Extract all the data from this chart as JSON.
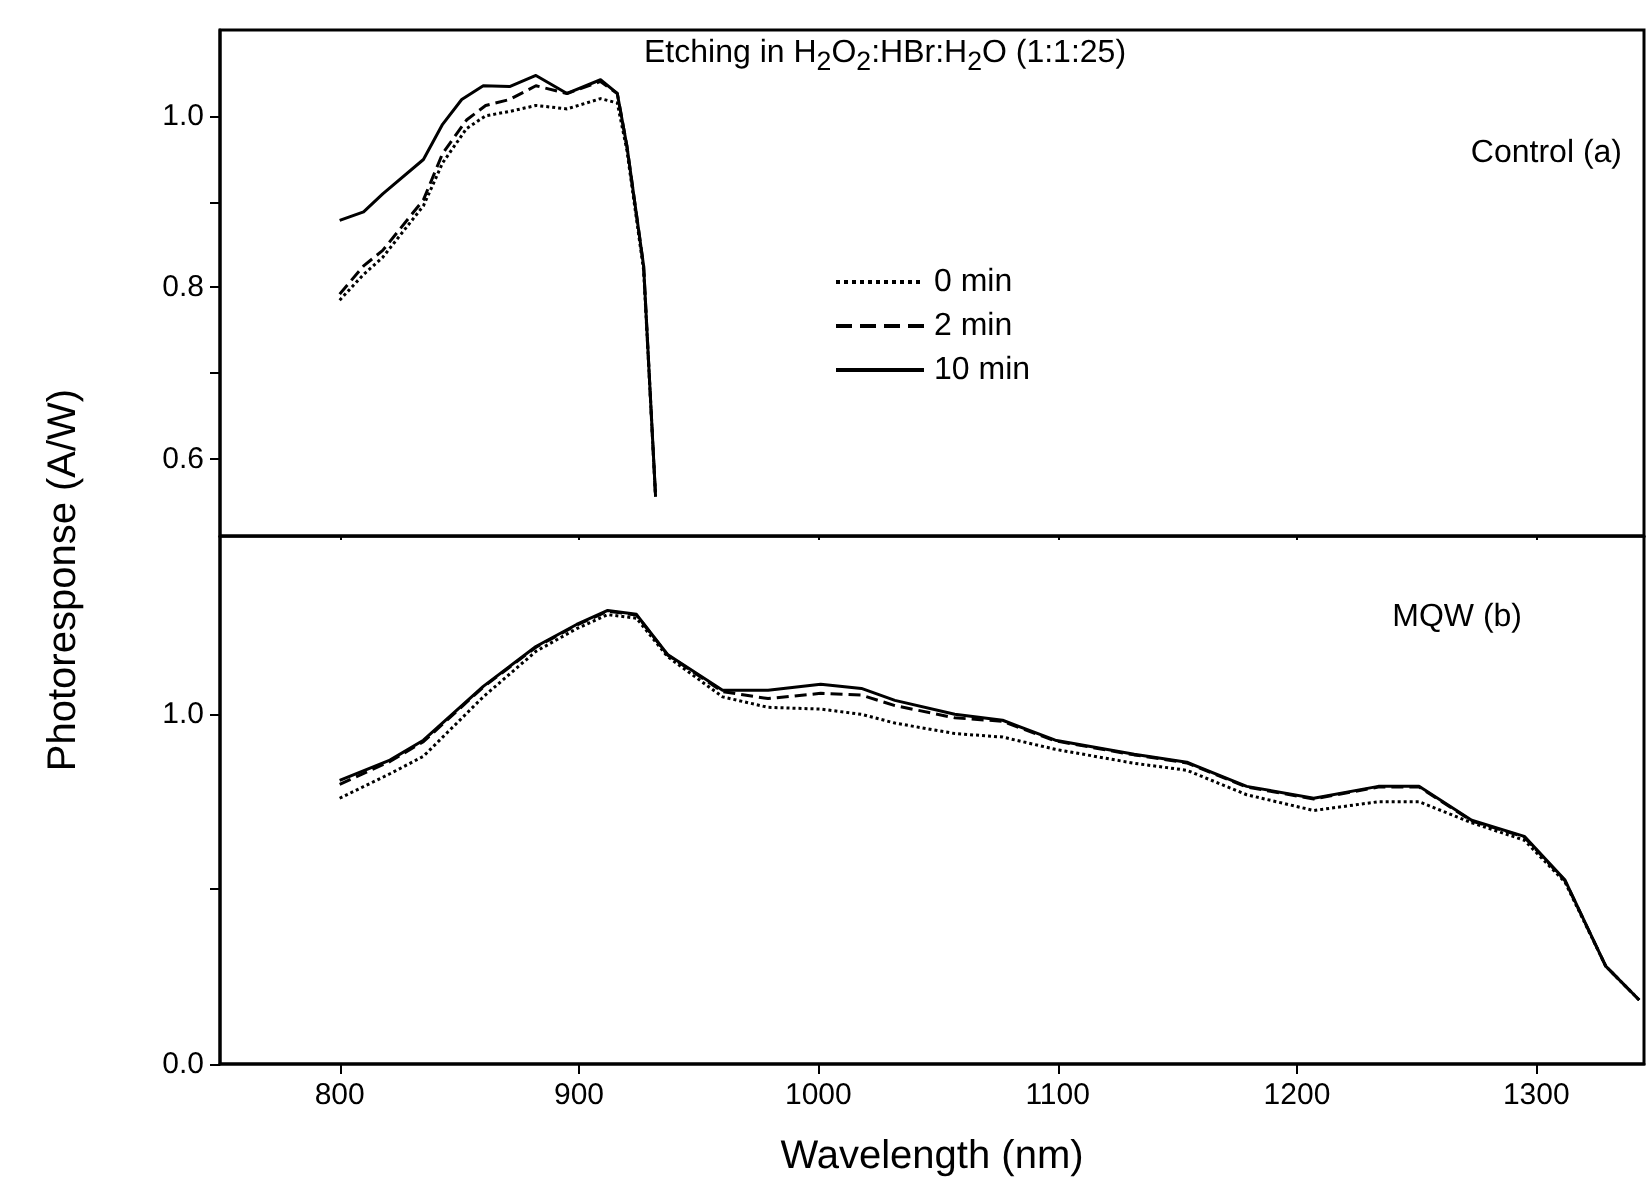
{
  "chart_data": [
    {
      "type": "line",
      "ylabel": "Photoresponse (A/W)",
      "annotations": [
        "Etching in H$_{2}$O$_{2}$:HBr:H$_{2}$O (1:1:25)",
        "Control (a)"
      ],
      "xlim": [
        750,
        1345
      ],
      "xticks": [
        800,
        900,
        1000,
        1100,
        1200,
        1300
      ],
      "ylim": [
        0.51,
        1.1
      ],
      "yticks": [
        0.6,
        {
          "value": 0.7,
          "label": null
        },
        0.8,
        {
          "value": 0.9,
          "label": null
        },
        {
          "value": 1,
          "label": "1.0"
        }
      ],
      "tick_labels": "y",
      "grid": false,
      "legend": "right",
      "marker": "none",
      "series": [
        {
          "name": "0 min",
          "color": "#000000",
          "line_style": "dotted",
          "x": [
            800,
            810,
            818,
            835,
            843,
            853,
            861,
            871,
            882,
            895,
            909,
            916,
            920,
            927,
            932
          ],
          "values": [
            0.785,
            0.815,
            0.835,
            0.895,
            0.945,
            0.985,
            1.0,
            1.005,
            1.012,
            1.008,
            1.02,
            1.015,
            0.96,
            0.82,
            0.556
          ]
        },
        {
          "name": "2 min",
          "color": "#000000",
          "line_style": "dashed",
          "x": [
            800,
            810,
            818,
            835,
            843,
            853,
            861,
            871,
            882,
            895,
            909,
            916,
            920,
            927,
            932
          ],
          "values": [
            0.792,
            0.825,
            0.843,
            0.902,
            0.956,
            0.995,
            1.012,
            1.019,
            1.035,
            1.026,
            1.04,
            1.026,
            0.965,
            0.825,
            0.556
          ]
        },
        {
          "name": "10 min",
          "color": "#000000",
          "line_style": "solid",
          "x": [
            800,
            810,
            818,
            835,
            843,
            851,
            860,
            871,
            882,
            895,
            909,
            916,
            920,
            927,
            932
          ],
          "values": [
            0.878,
            0.888,
            0.909,
            0.949,
            0.99,
            1.019,
            1.035,
            1.034,
            1.047,
            1.026,
            1.042,
            1.026,
            0.965,
            0.825,
            0.556
          ]
        }
      ]
    },
    {
      "type": "line",
      "xlabel": "Wavelength (nm)",
      "annotations": [
        "MQW (b)"
      ],
      "xlim": [
        750,
        1345
      ],
      "xticks": [
        800,
        900,
        1000,
        1100,
        1200,
        1300
      ],
      "ylim": [
        0,
        1.51
      ],
      "yticks": [
        {
          "value": 0,
          "label": "0.0"
        },
        {
          "value": 0.5,
          "label": null
        },
        {
          "value": 1,
          "label": "1.0"
        }
      ],
      "grid": false,
      "legend": false,
      "marker": "none",
      "series": [
        {
          "color": "#000000",
          "line_style": "dotted",
          "x": [
            800,
            821,
            835,
            860,
            882,
            899,
            912,
            924,
            937,
            960,
            979,
            1001,
            1018,
            1032,
            1057,
            1077,
            1099,
            1132,
            1154,
            1179,
            1207,
            1234,
            1251,
            1273,
            1295,
            1312,
            1329,
            1343
          ],
          "values": [
            0.76,
            0.83,
            0.88,
            1.05,
            1.18,
            1.245,
            1.285,
            1.275,
            1.165,
            1.05,
            1.02,
            1.015,
            1.0,
            0.975,
            0.945,
            0.935,
            0.9,
            0.86,
            0.84,
            0.77,
            0.725,
            0.75,
            0.75,
            0.69,
            0.64,
            0.52,
            0.28,
            0.183
          ]
        },
        {
          "color": "#000000",
          "line_style": "dashed",
          "x": [
            800,
            821,
            835,
            860,
            882,
            899,
            912,
            924,
            937,
            960,
            979,
            1001,
            1018,
            1032,
            1057,
            1077,
            1099,
            1132,
            1154,
            1179,
            1207,
            1234,
            1251,
            1273,
            1295,
            1312,
            1329,
            1343
          ],
          "values": [
            0.8,
            0.865,
            0.922,
            1.078,
            1.192,
            1.255,
            1.295,
            1.284,
            1.17,
            1.065,
            1.045,
            1.06,
            1.055,
            1.025,
            0.99,
            0.98,
            0.924,
            0.884,
            0.861,
            0.792,
            0.758,
            0.792,
            0.792,
            0.695,
            0.649,
            0.524,
            0.28,
            0.183
          ]
        },
        {
          "color": "#000000",
          "line_style": "solid",
          "x": [
            800,
            821,
            835,
            860,
            882,
            899,
            912,
            924,
            937,
            960,
            979,
            1001,
            1018,
            1032,
            1057,
            1077,
            1099,
            1132,
            1154,
            1179,
            1207,
            1234,
            1251,
            1273,
            1295,
            1312,
            1329,
            1343
          ],
          "values": [
            0.811,
            0.869,
            0.926,
            1.08,
            1.194,
            1.257,
            1.297,
            1.286,
            1.171,
            1.069,
            1.069,
            1.086,
            1.074,
            1.04,
            1.0,
            0.983,
            0.926,
            0.886,
            0.863,
            0.794,
            0.76,
            0.794,
            0.794,
            0.697,
            0.651,
            0.526,
            0.28,
            0.183
          ]
        }
      ]
    }
  ]
}
